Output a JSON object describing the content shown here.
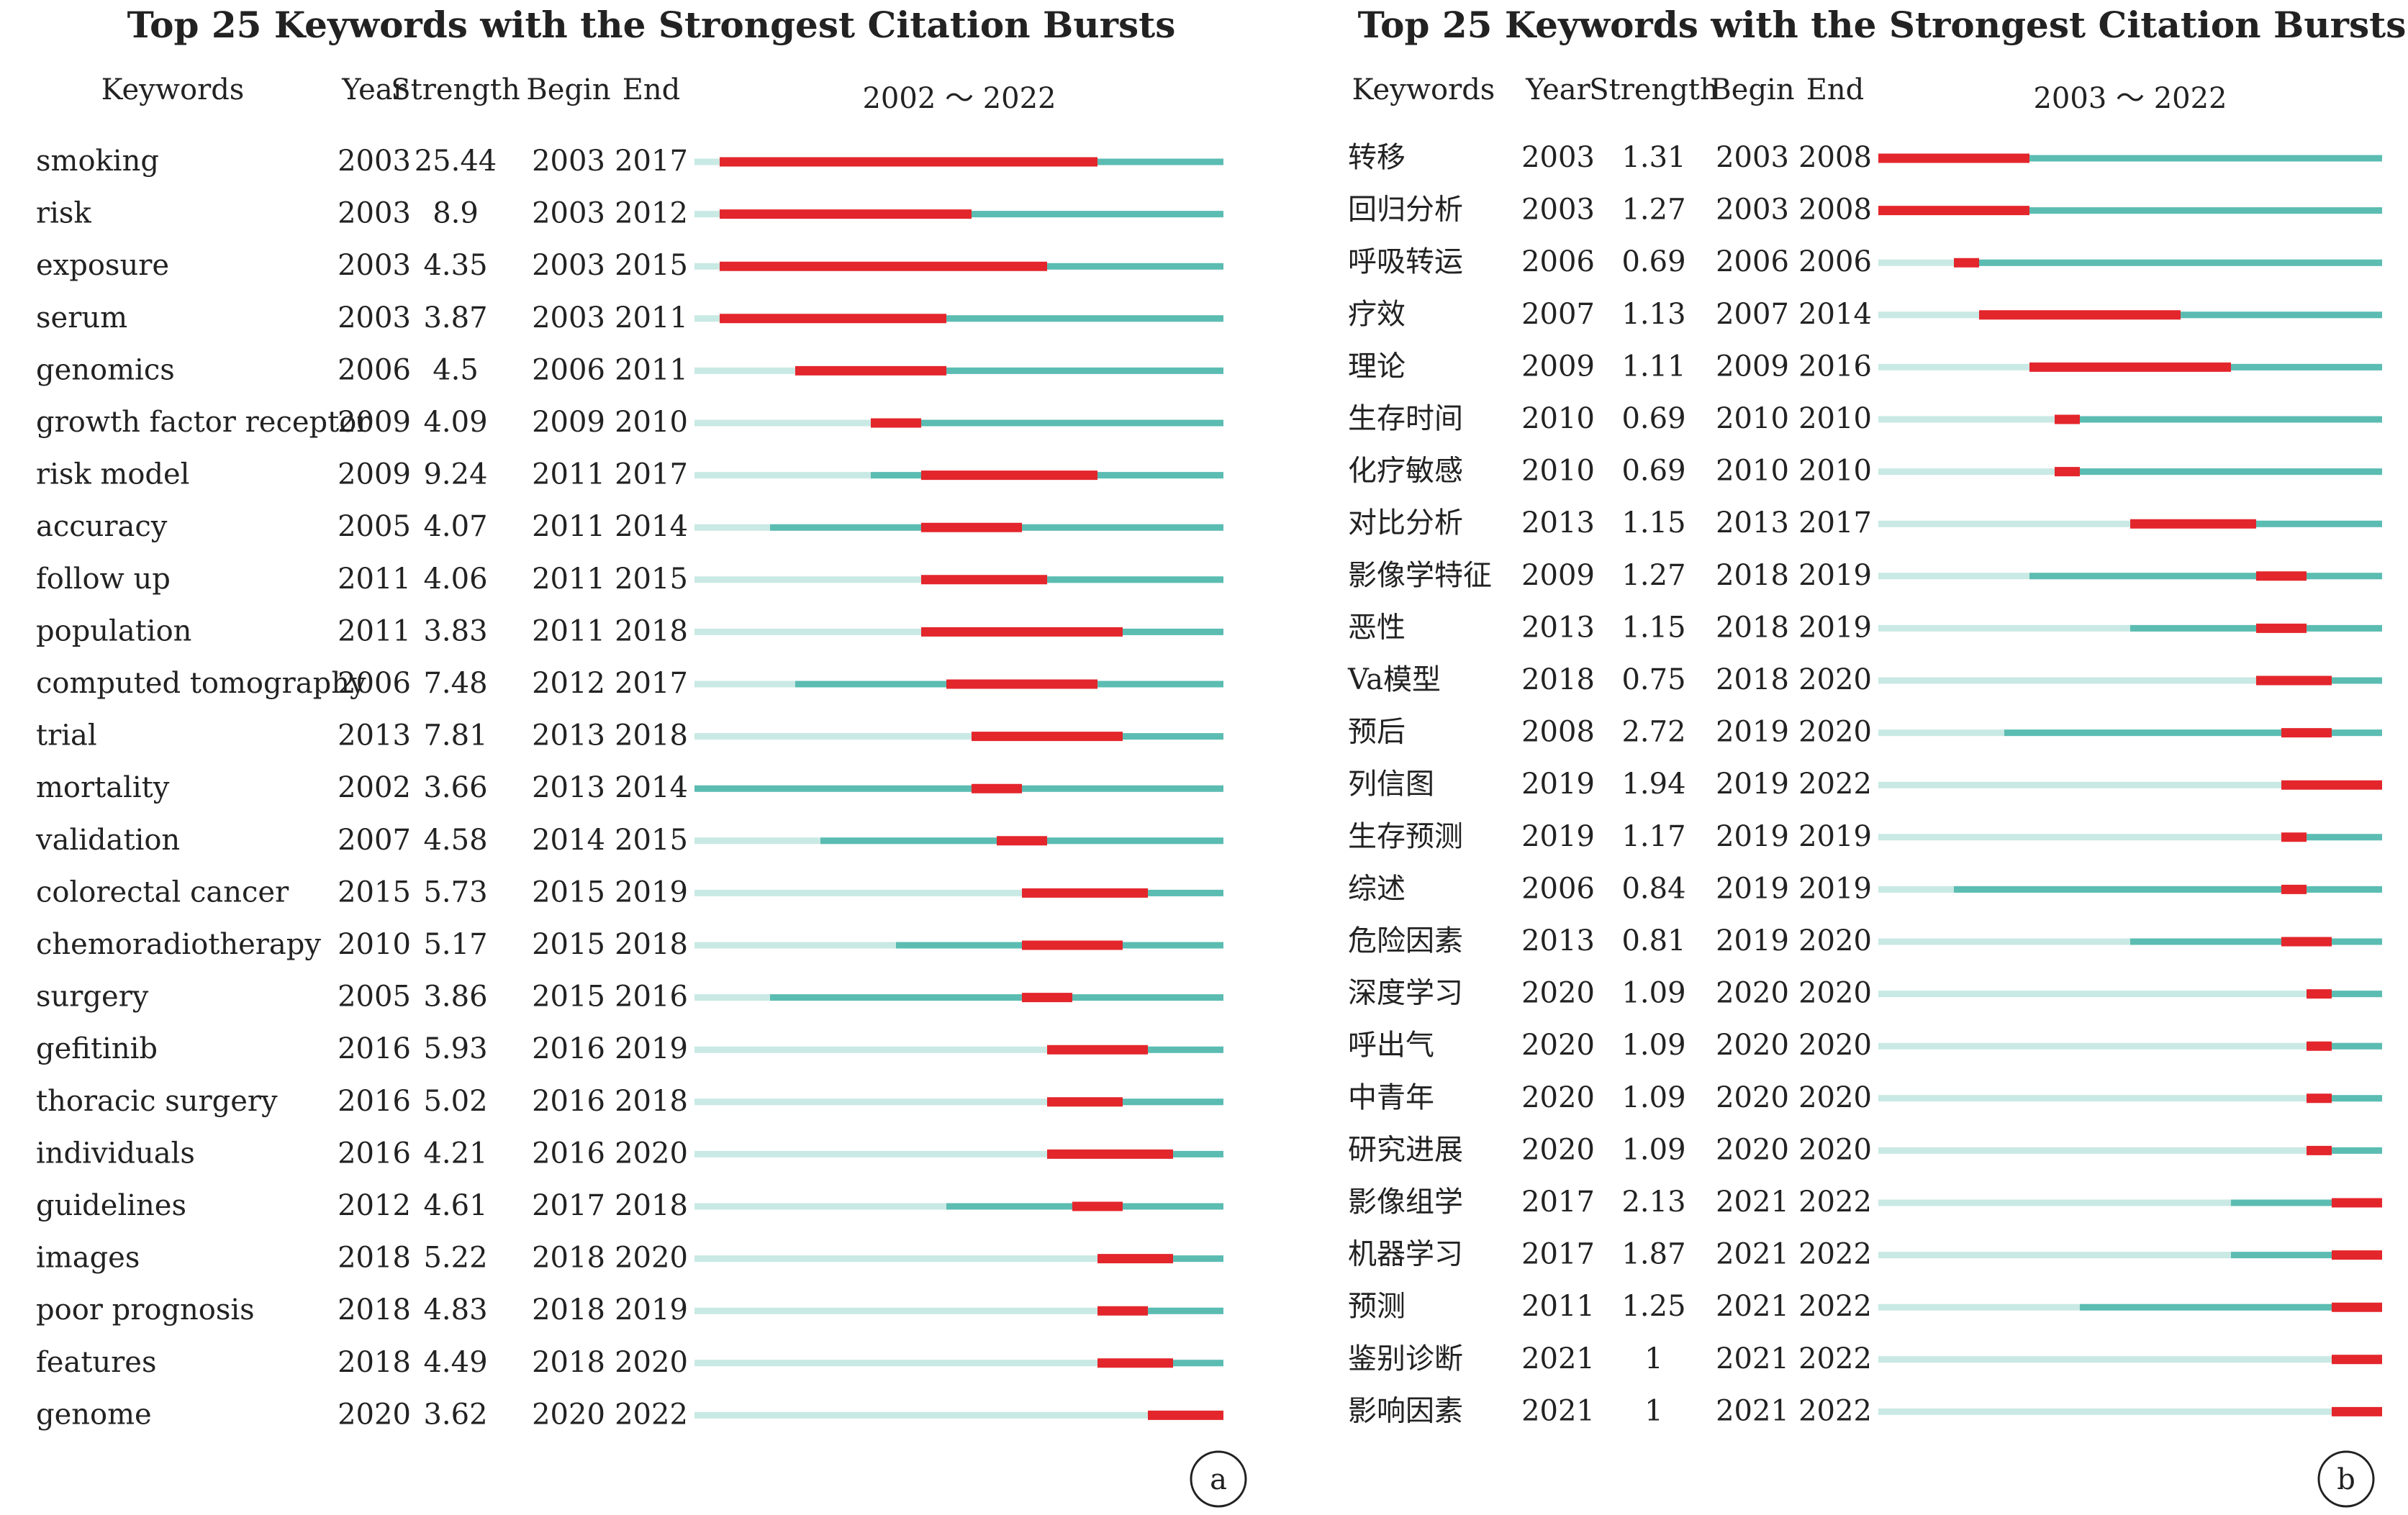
{
  "colors": {
    "burst": "#e3262c",
    "active": "#5bbcb2",
    "inactive": "#c9e9e4",
    "text": "#222222"
  },
  "chart_data": [
    {
      "type": "table",
      "panel_label": "a",
      "title": "Top 25 Keywords with the Strongest Citation Bursts",
      "columns": [
        "Keywords",
        "Year",
        "Strength",
        "Begin",
        "End"
      ],
      "timeline_label": "2002 ～ 2022",
      "range": [
        2002,
        2022
      ],
      "rows": [
        {
          "keyword": "smoking",
          "year": 2003,
          "strength": "25.44",
          "begin": 2003,
          "end": 2017
        },
        {
          "keyword": "risk",
          "year": 2003,
          "strength": "8.9",
          "begin": 2003,
          "end": 2012
        },
        {
          "keyword": "exposure",
          "year": 2003,
          "strength": "4.35",
          "begin": 2003,
          "end": 2015
        },
        {
          "keyword": "serum",
          "year": 2003,
          "strength": "3.87",
          "begin": 2003,
          "end": 2011
        },
        {
          "keyword": "genomics",
          "year": 2006,
          "strength": "4.5",
          "begin": 2006,
          "end": 2011
        },
        {
          "keyword": "growth factor receptor",
          "year": 2009,
          "strength": "4.09",
          "begin": 2009,
          "end": 2010
        },
        {
          "keyword": "risk model",
          "year": 2009,
          "strength": "9.24",
          "begin": 2011,
          "end": 2017
        },
        {
          "keyword": "accuracy",
          "year": 2005,
          "strength": "4.07",
          "begin": 2011,
          "end": 2014
        },
        {
          "keyword": "follow up",
          "year": 2011,
          "strength": "4.06",
          "begin": 2011,
          "end": 2015
        },
        {
          "keyword": "population",
          "year": 2011,
          "strength": "3.83",
          "begin": 2011,
          "end": 2018
        },
        {
          "keyword": "computed tomography",
          "year": 2006,
          "strength": "7.48",
          "begin": 2012,
          "end": 2017
        },
        {
          "keyword": "trial",
          "year": 2013,
          "strength": "7.81",
          "begin": 2013,
          "end": 2018
        },
        {
          "keyword": "mortality",
          "year": 2002,
          "strength": "3.66",
          "begin": 2013,
          "end": 2014
        },
        {
          "keyword": "validation",
          "year": 2007,
          "strength": "4.58",
          "begin": 2014,
          "end": 2015
        },
        {
          "keyword": "colorectal cancer",
          "year": 2015,
          "strength": "5.73",
          "begin": 2015,
          "end": 2019
        },
        {
          "keyword": "chemoradiotherapy",
          "year": 2010,
          "strength": "5.17",
          "begin": 2015,
          "end": 2018
        },
        {
          "keyword": "surgery",
          "year": 2005,
          "strength": "3.86",
          "begin": 2015,
          "end": 2016
        },
        {
          "keyword": "gefitinib",
          "year": 2016,
          "strength": "5.93",
          "begin": 2016,
          "end": 2019
        },
        {
          "keyword": "thoracic surgery",
          "year": 2016,
          "strength": "5.02",
          "begin": 2016,
          "end": 2018
        },
        {
          "keyword": "individuals",
          "year": 2016,
          "strength": "4.21",
          "begin": 2016,
          "end": 2020
        },
        {
          "keyword": "guidelines",
          "year": 2012,
          "strength": "4.61",
          "begin": 2017,
          "end": 2018
        },
        {
          "keyword": "images",
          "year": 2018,
          "strength": "5.22",
          "begin": 2018,
          "end": 2020
        },
        {
          "keyword": "poor prognosis",
          "year": 2018,
          "strength": "4.83",
          "begin": 2018,
          "end": 2019
        },
        {
          "keyword": "features",
          "year": 2018,
          "strength": "4.49",
          "begin": 2018,
          "end": 2020
        },
        {
          "keyword": "genome",
          "year": 2020,
          "strength": "3.62",
          "begin": 2020,
          "end": 2022
        }
      ]
    },
    {
      "type": "table",
      "panel_label": "b",
      "title": "Top 25 Keywords with the Strongest Citation Bursts",
      "columns": [
        "Keywords",
        "Year",
        "Strength",
        "Begin",
        "End"
      ],
      "timeline_label": "2003 ～ 2022",
      "range": [
        2003,
        2022
      ],
      "rows": [
        {
          "keyword": "转移",
          "year": 2003,
          "strength": "1.31",
          "begin": 2003,
          "end": 2008
        },
        {
          "keyword": "回归分析",
          "year": 2003,
          "strength": "1.27",
          "begin": 2003,
          "end": 2008
        },
        {
          "keyword": "呼吸转运",
          "year": 2006,
          "strength": "0.69",
          "begin": 2006,
          "end": 2006
        },
        {
          "keyword": "疗效",
          "year": 2007,
          "strength": "1.13",
          "begin": 2007,
          "end": 2014
        },
        {
          "keyword": "理论",
          "year": 2009,
          "strength": "1.11",
          "begin": 2009,
          "end": 2016
        },
        {
          "keyword": "生存时间",
          "year": 2010,
          "strength": "0.69",
          "begin": 2010,
          "end": 2010
        },
        {
          "keyword": "化疗敏感",
          "year": 2010,
          "strength": "0.69",
          "begin": 2010,
          "end": 2010
        },
        {
          "keyword": "对比分析",
          "year": 2013,
          "strength": "1.15",
          "begin": 2013,
          "end": 2017
        },
        {
          "keyword": "影像学特征",
          "year": 2009,
          "strength": "1.27",
          "begin": 2018,
          "end": 2019
        },
        {
          "keyword": "恶性",
          "year": 2013,
          "strength": "1.15",
          "begin": 2018,
          "end": 2019
        },
        {
          "keyword": "Va模型",
          "year": 2018,
          "strength": "0.75",
          "begin": 2018,
          "end": 2020
        },
        {
          "keyword": "预后",
          "year": 2008,
          "strength": "2.72",
          "begin": 2019,
          "end": 2020
        },
        {
          "keyword": "列信图",
          "year": 2019,
          "strength": "1.94",
          "begin": 2019,
          "end": 2022
        },
        {
          "keyword": "生存预测",
          "year": 2019,
          "strength": "1.17",
          "begin": 2019,
          "end": 2019
        },
        {
          "keyword": "综述",
          "year": 2006,
          "strength": "0.84",
          "begin": 2019,
          "end": 2019
        },
        {
          "keyword": "危险因素",
          "year": 2013,
          "strength": "0.81",
          "begin": 2019,
          "end": 2020
        },
        {
          "keyword": "深度学习",
          "year": 2020,
          "strength": "1.09",
          "begin": 2020,
          "end": 2020
        },
        {
          "keyword": "呼出气",
          "year": 2020,
          "strength": "1.09",
          "begin": 2020,
          "end": 2020
        },
        {
          "keyword": "中青年",
          "year": 2020,
          "strength": "1.09",
          "begin": 2020,
          "end": 2020
        },
        {
          "keyword": "研究进展",
          "year": 2020,
          "strength": "1.09",
          "begin": 2020,
          "end": 2020
        },
        {
          "keyword": "影像组学",
          "year": 2017,
          "strength": "2.13",
          "begin": 2021,
          "end": 2022
        },
        {
          "keyword": "机器学习",
          "year": 2017,
          "strength": "1.87",
          "begin": 2021,
          "end": 2022
        },
        {
          "keyword": "预测",
          "year": 2011,
          "strength": "1.25",
          "begin": 2021,
          "end": 2022
        },
        {
          "keyword": "鉴别诊断",
          "year": 2021,
          "strength": "1",
          "begin": 2021,
          "end": 2022
        },
        {
          "keyword": "影响因素",
          "year": 2021,
          "strength": "1",
          "begin": 2021,
          "end": 2022
        }
      ]
    }
  ]
}
